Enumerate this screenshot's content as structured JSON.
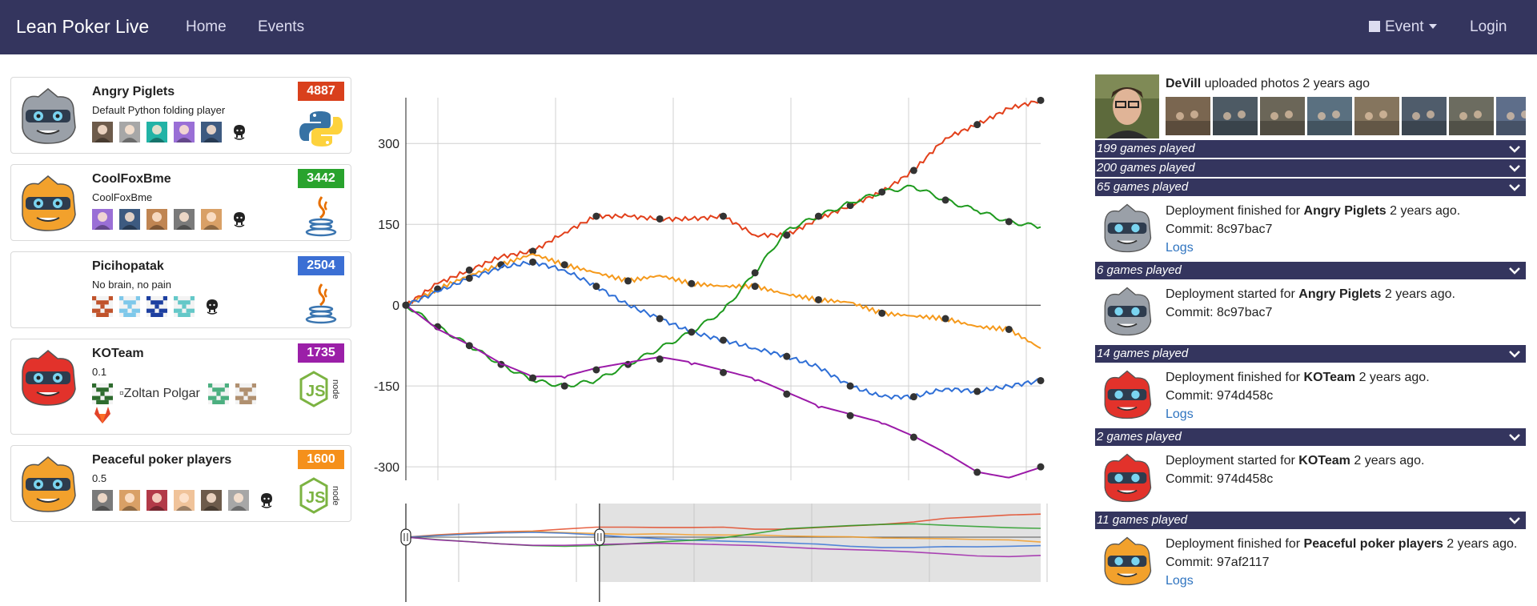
{
  "nav": {
    "brand": "Lean Poker Live",
    "home": "Home",
    "events": "Events",
    "event_menu": "Event",
    "login": "Login"
  },
  "teams": [
    {
      "name": "Angry Piglets",
      "desc": "Default Python folding player",
      "score": "4887",
      "score_color": "#d9401c",
      "mascot_color": "#9aa0a8",
      "lang": "python-icon"
    },
    {
      "name": "CoolFoxBme",
      "desc": "CoolFoxBme",
      "score": "3442",
      "score_color": "#29a32d",
      "mascot_color": "#f2a12c",
      "lang": "java-icon"
    },
    {
      "name": "Picihopatak",
      "desc": "No brain, no pain",
      "score": "2504",
      "score_color": "#3b6fd4",
      "mascot_color": "",
      "lang": "java-icon"
    },
    {
      "name": "KOTeam",
      "desc": "0.1",
      "score": "1735",
      "score_color": "#9b1fa8",
      "mascot_color": "#e2322b",
      "lang": "nodejs-icon",
      "broken_member": "Zoltan Polgar"
    },
    {
      "name": "Peaceful poker players",
      "desc": "0.5",
      "score": "1600",
      "score_color": "#f5901b",
      "mascot_color": "#f2a12c",
      "lang": "nodejs-icon"
    }
  ],
  "feed": {
    "upload_user": "DeVill",
    "upload_text": " uploaded photos 2 years ago",
    "games": [
      "199 games played",
      "200 games played",
      "65 games played",
      "6 games played",
      "14 games played",
      "2 games played",
      "11 games played"
    ],
    "deploys": [
      {
        "pre": "Deployment finished for ",
        "team": "Angry Piglets",
        "post": " 2 years ago.",
        "commit": "Commit: 8c97bac7",
        "logs": "Logs"
      },
      {
        "pre": "Deployment started for ",
        "team": "Angry Piglets",
        "post": " 2 years ago.",
        "commit": "Commit: 8c97bac7"
      },
      {
        "pre": "Deployment finished for ",
        "team": "KOTeam",
        "post": " 2 years ago.",
        "commit": "Commit: 974d458c",
        "logs": "Logs"
      },
      {
        "pre": "Deployment started for ",
        "team": "KOTeam",
        "post": " 2 years ago.",
        "commit": "Commit: 974d458c"
      },
      {
        "pre": "Deployment finished for ",
        "team": "Peaceful poker players",
        "post": " 2 years ago.",
        "commit": "Commit: 97af2117",
        "logs": "Logs"
      }
    ]
  },
  "chart_data": {
    "type": "line",
    "xlabel": "",
    "ylabel": "",
    "ylim": [
      -325,
      385
    ],
    "yticks": [
      "300",
      "150",
      "0",
      "-150",
      "-300"
    ],
    "grid": true,
    "legend": "none",
    "x": [
      0,
      5,
      10,
      15,
      20,
      25,
      30,
      35,
      40,
      45,
      50,
      55,
      60,
      65,
      70,
      75,
      80,
      85,
      90,
      95,
      100
    ],
    "series": [
      {
        "color": "#e2401b",
        "values": [
          0,
          40,
          65,
          90,
          100,
          135,
          165,
          165,
          160,
          160,
          165,
          130,
          130,
          160,
          185,
          210,
          250,
          310,
          335,
          365,
          380
        ]
      },
      {
        "color": "#f5991b",
        "values": [
          0,
          30,
          55,
          75,
          95,
          75,
          60,
          45,
          55,
          40,
          35,
          35,
          20,
          10,
          5,
          -15,
          -20,
          -25,
          -40,
          -45,
          -80
        ]
      },
      {
        "color": "#2f6fd6",
        "values": [
          0,
          25,
          50,
          70,
          80,
          65,
          35,
          0,
          -25,
          -50,
          -65,
          -80,
          -95,
          -115,
          -150,
          -170,
          -170,
          -155,
          -160,
          -150,
          -140
        ]
      },
      {
        "color": "#1e9a1e",
        "values": [
          0,
          -40,
          -75,
          -110,
          -140,
          -150,
          -140,
          -110,
          -80,
          -50,
          -10,
          60,
          140,
          165,
          190,
          210,
          220,
          195,
          175,
          155,
          145
        ]
      },
      {
        "color": "#9b1aa8",
        "values": [
          0,
          -45,
          -75,
          -110,
          -135,
          -135,
          -120,
          -110,
          -100,
          -110,
          -125,
          -140,
          -165,
          -190,
          -205,
          -220,
          -245,
          -275,
          -310,
          -320,
          -300
        ]
      }
    ]
  }
}
